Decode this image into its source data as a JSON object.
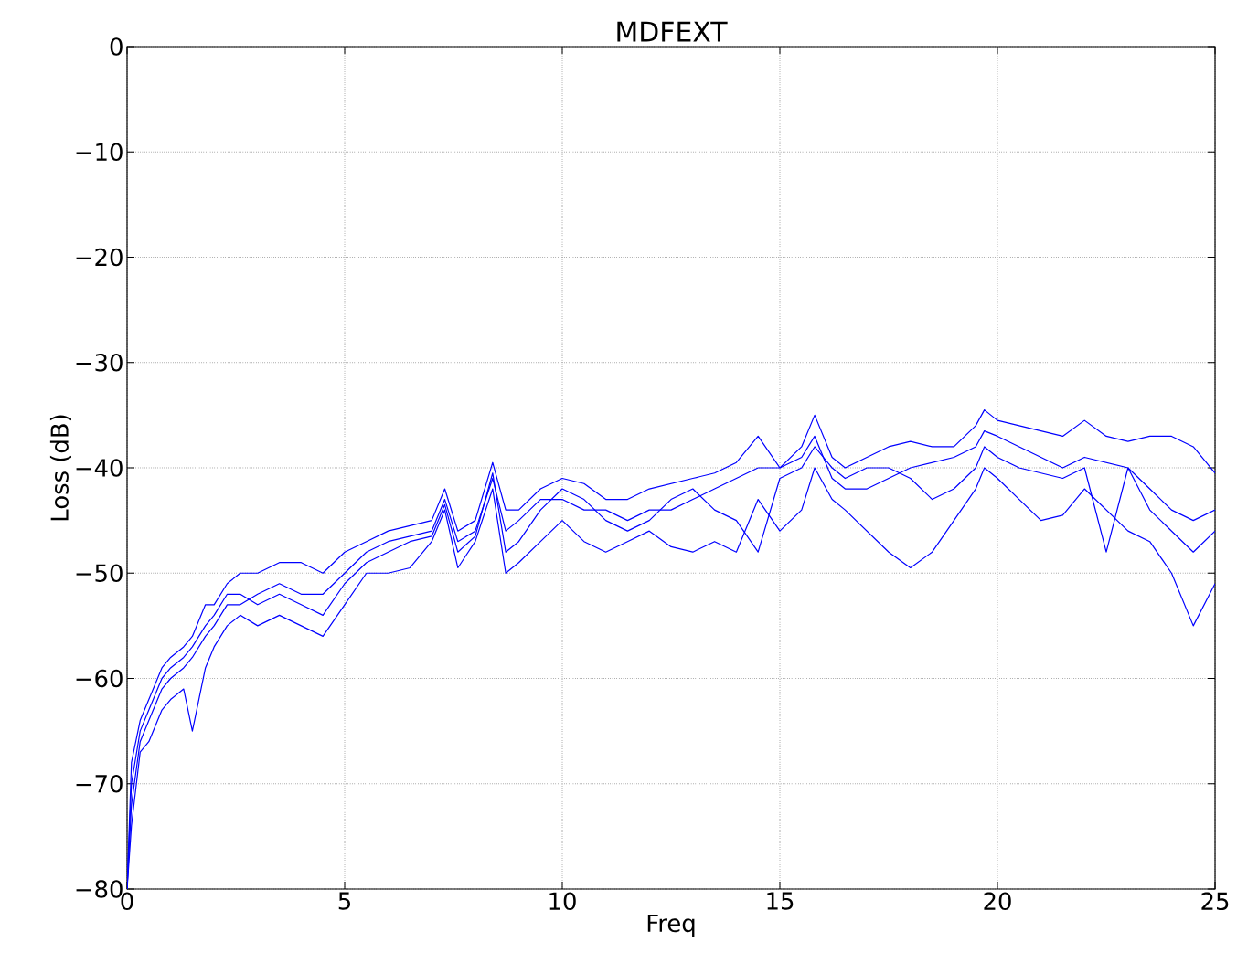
{
  "chart_data": {
    "type": "line",
    "title": "MDFEXT",
    "xlabel": "Freq",
    "ylabel": "Loss (dB)",
    "x": [
      0,
      0.1,
      0.3,
      0.5,
      0.8,
      1,
      1.3,
      1.5,
      1.8,
      2,
      2.3,
      2.6,
      3,
      3.5,
      4,
      4.5,
      5,
      5.5,
      6,
      6.5,
      7,
      7.3,
      7.6,
      8,
      8.4,
      8.7,
      9,
      9.5,
      10,
      10.5,
      11,
      11.5,
      12,
      12.5,
      13,
      13.5,
      14,
      14.5,
      15,
      15.5,
      15.8,
      16.2,
      16.5,
      17,
      17.5,
      18,
      18.5,
      19,
      19.5,
      19.7,
      20,
      20.5,
      21,
      21.5,
      22,
      22.5,
      23,
      23.5,
      24,
      24.5,
      25
    ],
    "series": [
      {
        "color": "#0000ff",
        "values": [
          -80,
          -68,
          -64,
          -62,
          -59,
          -58,
          -57,
          -56,
          -53,
          -53,
          -51,
          -50,
          -50,
          -49,
          -49,
          -50,
          -48,
          -47,
          -46,
          -45.5,
          -45,
          -42,
          -46,
          -45,
          -39.5,
          -44,
          -44,
          -42,
          -41,
          -41.5,
          -43,
          -43,
          -42,
          -41.5,
          -41,
          -40.5,
          -39.5,
          -37,
          -40,
          -38,
          -35,
          -39,
          -40,
          -39,
          -38,
          -37.5,
          -38,
          -38,
          -36,
          -34.5,
          -35.5,
          -36,
          -36.5,
          -37,
          -35.5,
          -37,
          -37.5,
          -37,
          -37,
          -38,
          -40.5
        ]
      },
      {
        "color": "#0000ff",
        "values": [
          -80,
          -72,
          -66,
          -64,
          -61,
          -60,
          -59,
          -58,
          -56,
          -55,
          -53,
          -53,
          -52,
          -51,
          -52,
          -52,
          -50,
          -48,
          -47,
          -46.5,
          -46,
          -43,
          -47,
          -46,
          -41,
          -46,
          -45,
          -43,
          -43,
          -44,
          -44,
          -45,
          -44,
          -44,
          -43,
          -42,
          -41,
          -40,
          -40,
          -39,
          -37,
          -41,
          -42,
          -42,
          -41,
          -40,
          -39.5,
          -39,
          -38,
          -36.5,
          -37,
          -38,
          -39,
          -40,
          -39,
          -39.5,
          -40,
          -42,
          -44,
          -45,
          -44
        ]
      },
      {
        "color": "#0000ff",
        "values": [
          -80,
          -74,
          -67,
          -66,
          -63,
          -62,
          -61,
          -65,
          -59,
          -57,
          -55,
          -54,
          -55,
          -54,
          -55,
          -56,
          -53,
          -50,
          -50,
          -49.5,
          -47,
          -44,
          -49.5,
          -47,
          -42,
          -50,
          -49,
          -47,
          -45,
          -47,
          -48,
          -47,
          -46,
          -47.5,
          -48,
          -47,
          -48,
          -43,
          -46,
          -44,
          -40,
          -43,
          -44,
          -46,
          -48,
          -49.5,
          -48,
          -45,
          -42,
          -40,
          -41,
          -43,
          -45,
          -44.5,
          -42,
          -44,
          -46,
          -47,
          -50,
          -55,
          -51
        ]
      },
      {
        "color": "#0000ff",
        "values": [
          -80,
          -70,
          -65,
          -63,
          -60,
          -59,
          -58,
          -57,
          -55,
          -54,
          -52,
          -52,
          -53,
          -52,
          -53,
          -54,
          -51,
          -49,
          -48,
          -47,
          -46.5,
          -43.5,
          -48,
          -46.5,
          -40.5,
          -48,
          -47,
          -44,
          -42,
          -43,
          -45,
          -46,
          -45,
          -43,
          -42,
          -44,
          -45,
          -48,
          -41,
          -40,
          -38,
          -40,
          -41,
          -40,
          -40,
          -41,
          -43,
          -42,
          -40,
          -38,
          -39,
          -40,
          -40.5,
          -41,
          -40,
          -48,
          -40,
          -44,
          -46,
          -48,
          -46
        ]
      }
    ],
    "xlim": [
      0,
      25
    ],
    "ylim": [
      -80,
      0
    ],
    "xticks": [
      0,
      5,
      10,
      15,
      20,
      25
    ],
    "yticks": [
      {
        "value": -80,
        "label": "−80"
      },
      {
        "value": -70,
        "label": "−70"
      },
      {
        "value": -60,
        "label": "−60"
      },
      {
        "value": -50,
        "label": "−50"
      },
      {
        "value": -40,
        "label": "−40"
      },
      {
        "value": -30,
        "label": "−30"
      },
      {
        "value": -20,
        "label": "−20"
      },
      {
        "value": -10,
        "label": "−10"
      },
      0
    ],
    "grid": true,
    "line_style": "solid"
  }
}
